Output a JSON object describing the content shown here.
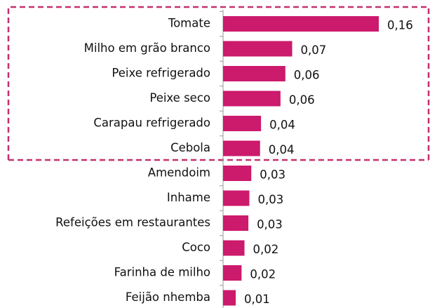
{
  "chart_data": {
    "type": "bar",
    "orientation": "horizontal",
    "categories": [
      "Tomate",
      "Milho em grão branco",
      "Peixe refrigerado",
      "Peixe seco",
      "Carapau refrigerado",
      "Cebola",
      "Amendoim",
      "Inhame",
      "Refeições em restaurantes",
      "Coco",
      "Farinha de milho",
      "Feijão nhemba"
    ],
    "values": [
      0.16,
      0.071,
      0.064,
      0.059,
      0.039,
      0.038,
      0.029,
      0.027,
      0.026,
      0.022,
      0.019,
      0.013
    ],
    "value_labels": [
      "0,16",
      "0,07",
      "0,06",
      "0,06",
      "0,04",
      "0,04",
      "0,03",
      "0,03",
      "0,03",
      "0,02",
      "0,02",
      "0,01"
    ],
    "color": "#cc1a6c"
  }
}
